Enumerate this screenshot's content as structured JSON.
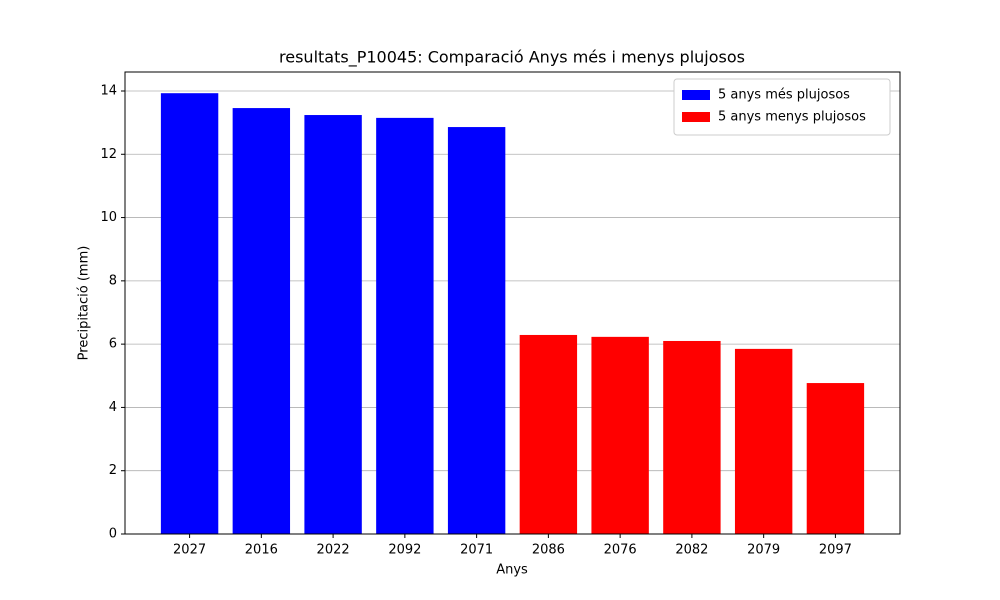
{
  "chart_data": {
    "type": "bar",
    "title": "resultats_P10045: Comparació Anys més i menys plujosos",
    "x_label": "Anys",
    "y_label": "Precipitació (mm)",
    "categories": [
      "2027",
      "2016",
      "2022",
      "2092",
      "2071",
      "2086",
      "2076",
      "2082",
      "2079",
      "2097"
    ],
    "series": [
      {
        "name": "5 anys més plujosos",
        "color": "#0000ff",
        "values": [
          13.93,
          13.46,
          13.24,
          13.15,
          12.86,
          null,
          null,
          null,
          null,
          null
        ]
      },
      {
        "name": "5 anys menys plujosos",
        "color": "#ff0000",
        "values": [
          null,
          null,
          null,
          null,
          null,
          6.29,
          6.23,
          6.1,
          5.85,
          4.77
        ]
      }
    ],
    "ylim": [
      0,
      14.6
    ],
    "yticks": [
      0,
      2,
      4,
      6,
      8,
      10,
      12,
      14
    ],
    "grid": true,
    "legend": "upper right"
  }
}
